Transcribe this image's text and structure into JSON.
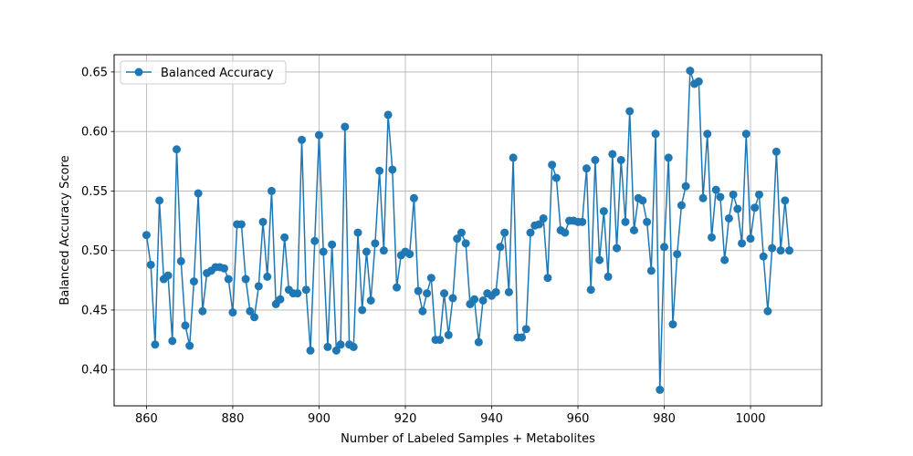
{
  "chart_data": {
    "type": "line",
    "title": "",
    "xlabel": "Number of Labeled Samples + Metabolites",
    "ylabel": "Balanced Accuracy Score",
    "xlim": [
      852.5,
      1016.5
    ],
    "ylim": [
      0.3695,
      0.6645
    ],
    "xticks": [
      860,
      880,
      900,
      920,
      940,
      960,
      980,
      1000
    ],
    "yticks": [
      0.4,
      0.45,
      0.5,
      0.55,
      0.6,
      0.65
    ],
    "grid": true,
    "legend_position": "upper-left",
    "marker": "circle",
    "series": [
      {
        "name": "Balanced Accuracy",
        "color": "#1f77b4",
        "x": [
          860,
          861,
          862,
          863,
          864,
          865,
          866,
          867,
          868,
          869,
          870,
          871,
          872,
          873,
          874,
          875,
          876,
          877,
          878,
          879,
          880,
          881,
          882,
          883,
          884,
          885,
          886,
          887,
          888,
          889,
          890,
          891,
          892,
          893,
          894,
          895,
          896,
          897,
          898,
          899,
          900,
          901,
          902,
          903,
          904,
          905,
          906,
          907,
          908,
          909,
          910,
          911,
          912,
          913,
          914,
          915,
          916,
          917,
          918,
          919,
          920,
          921,
          922,
          923,
          924,
          925,
          926,
          927,
          928,
          929,
          930,
          931,
          932,
          933,
          934,
          935,
          936,
          937,
          938,
          939,
          940,
          941,
          942,
          943,
          944,
          945,
          946,
          947,
          948,
          949,
          950,
          951,
          952,
          953,
          954,
          955,
          956,
          957,
          958,
          959,
          960,
          961,
          962,
          963,
          964,
          965,
          966,
          967,
          968,
          969,
          970,
          971,
          972,
          973,
          974,
          975,
          976,
          977,
          978,
          979,
          980,
          981,
          982,
          983,
          984,
          985,
          986,
          987,
          988,
          989,
          990,
          991,
          992,
          993,
          994,
          995,
          996,
          997,
          998,
          999,
          1000,
          1001,
          1002,
          1003,
          1004,
          1005,
          1006,
          1007,
          1008,
          1009
        ],
        "y": [
          0.513,
          0.488,
          0.421,
          0.542,
          0.476,
          0.479,
          0.424,
          0.585,
          0.491,
          0.437,
          0.42,
          0.474,
          0.548,
          0.449,
          0.481,
          0.483,
          0.486,
          0.486,
          0.485,
          0.476,
          0.448,
          0.522,
          0.522,
          0.476,
          0.449,
          0.444,
          0.47,
          0.524,
          0.478,
          0.55,
          0.455,
          0.459,
          0.511,
          0.467,
          0.464,
          0.464,
          0.593,
          0.467,
          0.416,
          0.508,
          0.597,
          0.499,
          0.419,
          0.505,
          0.416,
          0.421,
          0.604,
          0.421,
          0.419,
          0.515,
          0.45,
          0.499,
          0.458,
          0.506,
          0.567,
          0.5,
          0.614,
          0.568,
          0.469,
          0.496,
          0.499,
          0.497,
          0.544,
          0.466,
          0.449,
          0.464,
          0.477,
          0.425,
          0.425,
          0.464,
          0.429,
          0.46,
          0.51,
          0.515,
          0.506,
          0.455,
          0.459,
          0.423,
          0.458,
          0.464,
          0.462,
          0.465,
          0.503,
          0.515,
          0.465,
          0.578,
          0.427,
          0.427,
          0.434,
          0.515,
          0.521,
          0.522,
          0.527,
          0.477,
          0.572,
          0.561,
          0.517,
          0.515,
          0.525,
          0.525,
          0.524,
          0.524,
          0.569,
          0.467,
          0.576,
          0.492,
          0.533,
          0.478,
          0.581,
          0.502,
          0.576,
          0.524,
          0.617,
          0.517,
          0.544,
          0.542,
          0.524,
          0.483,
          0.598,
          0.383,
          0.503,
          0.578,
          0.438,
          0.497,
          0.538,
          0.554,
          0.651,
          0.64,
          0.642,
          0.544,
          0.598,
          0.511,
          0.551,
          0.545,
          0.492,
          0.527,
          0.547,
          0.535,
          0.506,
          0.598,
          0.51,
          0.536,
          0.547,
          0.495,
          0.449,
          0.502,
          0.583,
          0.5,
          0.542,
          0.5
        ]
      }
    ]
  }
}
